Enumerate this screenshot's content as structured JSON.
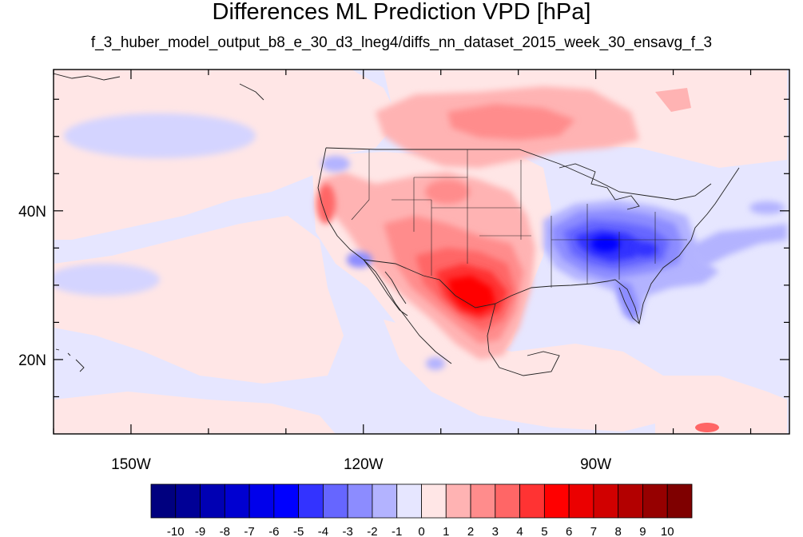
{
  "title": "Differences ML Prediction VPD [hPa]",
  "subtitle": "f_3_huber_model_output_b8_e_30_d3_lneg4/diffs_nn_dataset_2015_week_30_ensavg_f_3",
  "map": {
    "lon_range": [
      -160,
      -65
    ],
    "lat_range": [
      10,
      59
    ],
    "x_ticks": [
      {
        "lon": -150,
        "label": "150W"
      },
      {
        "lon": -120,
        "label": "120W"
      },
      {
        "lon": -90,
        "label": "90W"
      }
    ],
    "y_ticks": [
      {
        "lat": 40,
        "label": "40N"
      },
      {
        "lat": 20,
        "label": "20N"
      }
    ],
    "background_value": "-1 to 0",
    "anomalies": [
      {
        "region": "Southern Great Plains / Texas",
        "lon": -103,
        "lat": 30.5,
        "value": 6
      },
      {
        "region": "Southeast US",
        "lon": -84,
        "lat": 35,
        "value": -5
      },
      {
        "region": "Canada north of Great Lakes",
        "lon": -103,
        "lat": 52,
        "value": 2
      },
      {
        "region": "California coast",
        "lon": -122,
        "lat": 39,
        "value": 3
      }
    ]
  },
  "colorbar": {
    "labels": [
      "-10",
      "-9",
      "-8",
      "-7",
      "-6",
      "-5",
      "-4",
      "-3",
      "-2",
      "-1",
      "0",
      "1",
      "2",
      "3",
      "4",
      "5",
      "6",
      "7",
      "8",
      "9",
      "10"
    ],
    "colors": [
      "#00007f",
      "#000096",
      "#0000b3",
      "#0000d1",
      "#0000eb",
      "#0000ff",
      "#3333ff",
      "#6666ff",
      "#8c8cff",
      "#b3b3ff",
      "#e6e6ff",
      "#ffe6e6",
      "#ffb3b3",
      "#ff8c8c",
      "#ff6666",
      "#ff3333",
      "#ff0000",
      "#eb0000",
      "#d10000",
      "#b30000",
      "#960000",
      "#7f0000"
    ]
  }
}
